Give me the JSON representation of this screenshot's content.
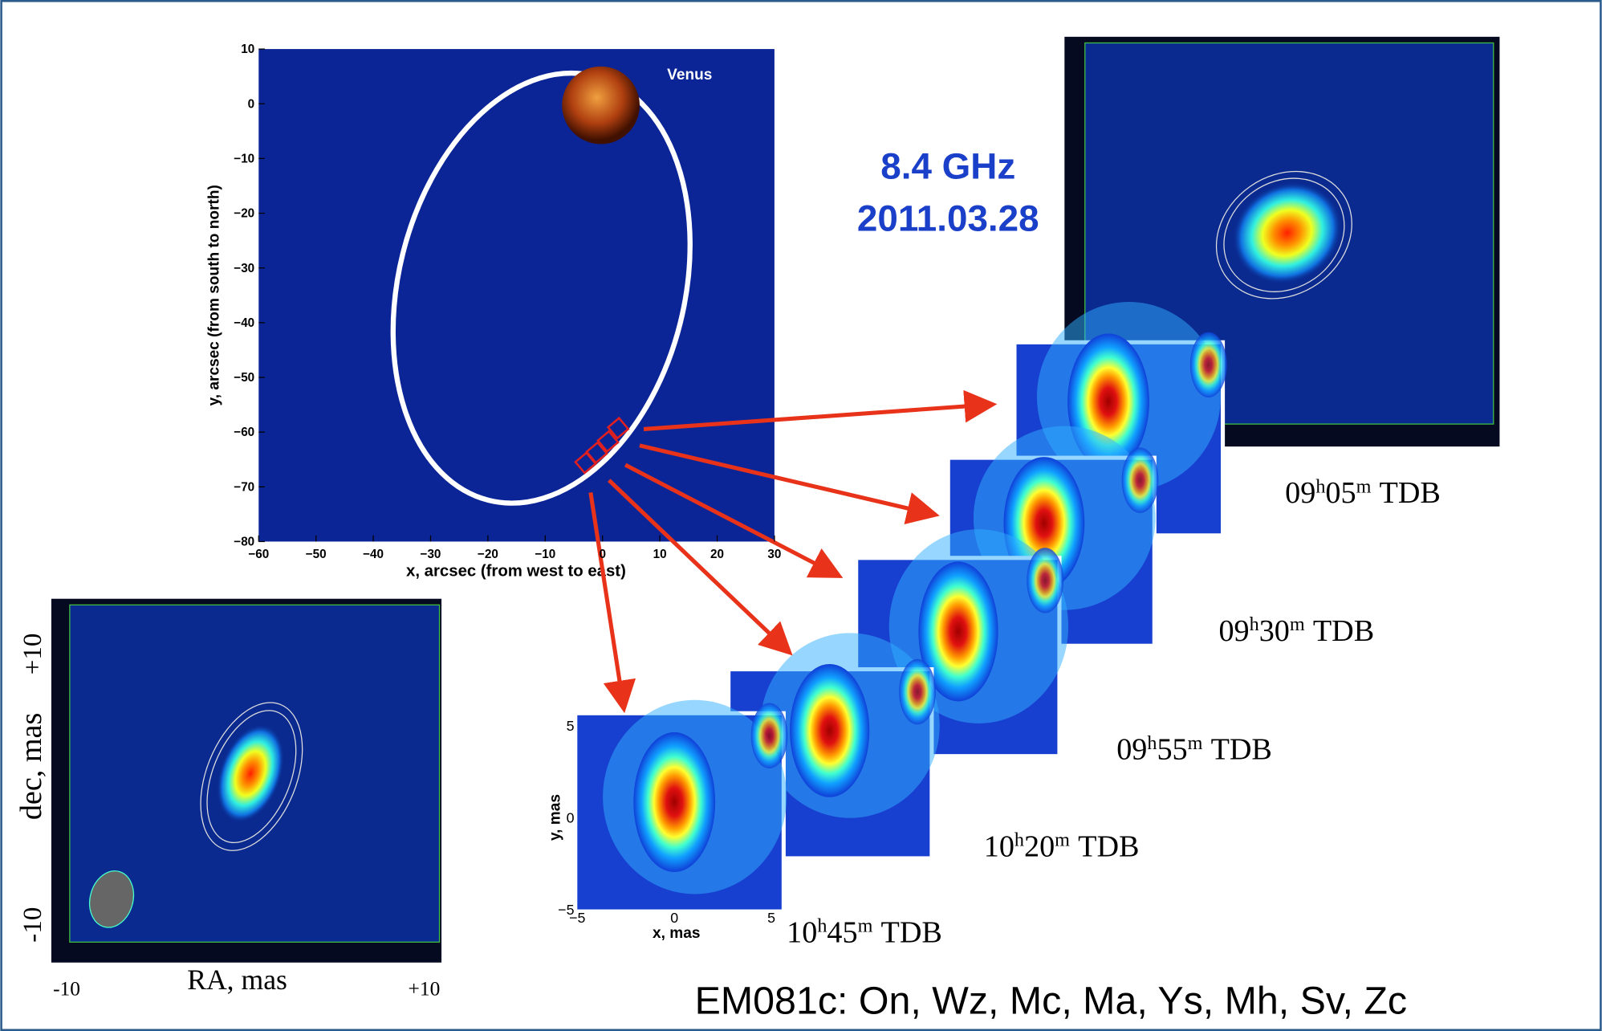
{
  "orbit_plot": {
    "annotation": "Venus",
    "xlabel": "x, arcsec (from west to east)",
    "ylabel": "y, arcsec (from south to north)",
    "xticks": [
      "−60",
      "−50",
      "−40",
      "−30",
      "−20",
      "−10",
      "0",
      "10",
      "20",
      "30"
    ],
    "yticks": [
      "10",
      "0",
      "−10",
      "−20",
      "−30",
      "−40",
      "−50",
      "−60",
      "−70",
      "−80"
    ]
  },
  "observation": {
    "frequency": "8.4 GHz",
    "date": "2011.03.28"
  },
  "time_labels": [
    {
      "hh": "09",
      "hu": "h",
      "mm": "05",
      "mu": "m",
      "scale": "TDB"
    },
    {
      "hh": "09",
      "hu": "h",
      "mm": "30",
      "mu": "m",
      "scale": "TDB"
    },
    {
      "hh": "09",
      "hu": "h",
      "mm": "55",
      "mu": "m",
      "scale": "TDB"
    },
    {
      "hh": "10",
      "hu": "h",
      "mm": "20",
      "mu": "m",
      "scale": "TDB"
    },
    {
      "hh": "10",
      "hu": "h",
      "mm": "45",
      "mu": "m",
      "scale": "TDB"
    }
  ],
  "front_panel": {
    "xlabel": "x, mas",
    "ylabel": "y, mas",
    "xticks": [
      "−5",
      "0",
      "5"
    ],
    "yticks": [
      "5",
      "0",
      "−5"
    ]
  },
  "map_image": {
    "ylabel": "dec, mas",
    "y_top": "+10",
    "y_bottom": "-10",
    "xlabel": "RA, mas",
    "x_left": "-10",
    "x_right": "+10"
  },
  "stations": "EM081c: On, Wz, Mc, Ma, Ys, Mh, Sv, Zc"
}
